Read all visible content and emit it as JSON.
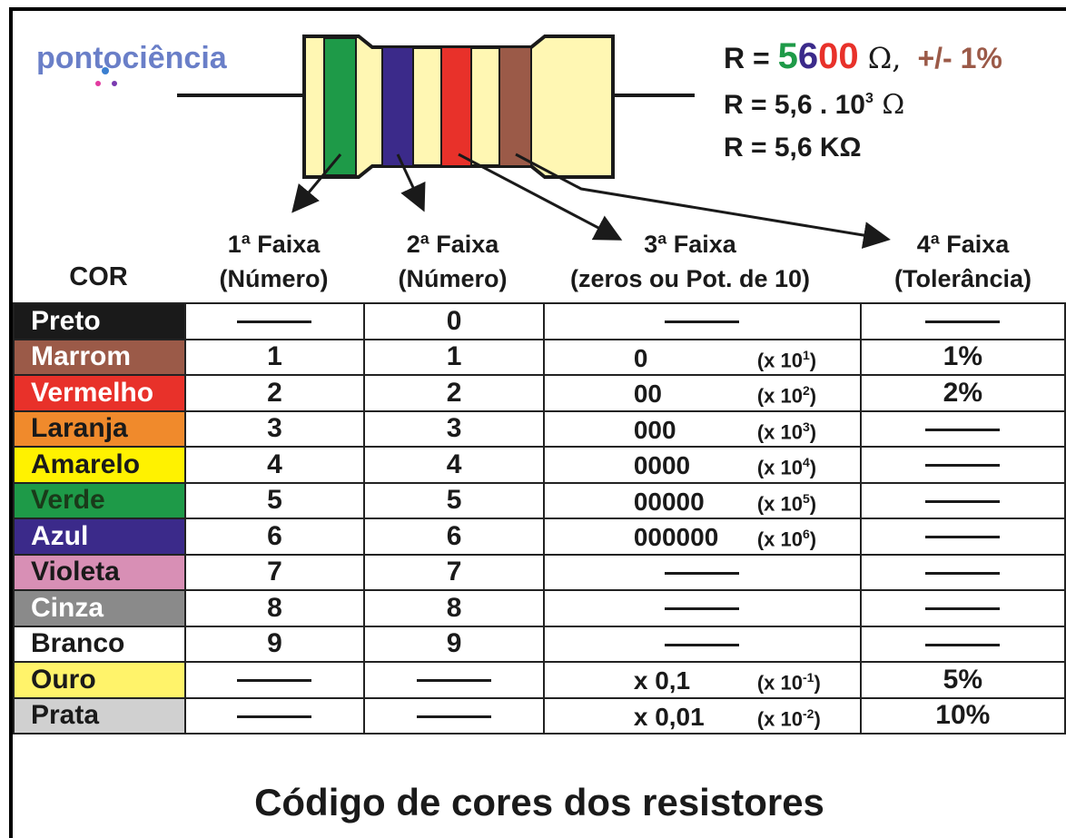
{
  "logo": "pontociência",
  "formula": {
    "line1": {
      "prefix": "R = ",
      "digit1": "5",
      "digit2": "6",
      "zeros": "00",
      "unit": " Ω,",
      "tolerance": "+/- 1%"
    },
    "line2": {
      "text": "R = 5,6 . 10",
      "exp": "3",
      "unit": " Ω"
    },
    "line3": "R = 5,6 KΩ"
  },
  "headers": {
    "color": "COR",
    "band1": [
      "1ª Faixa",
      "(Número)"
    ],
    "band2": [
      "2ª Faixa",
      "(Número)"
    ],
    "band3": [
      "3ª Faixa",
      "(zeros ou Pot. de 10)"
    ],
    "band4": [
      "4ª Faixa",
      "(Tolerância)"
    ]
  },
  "table": {
    "mult_prefix": "(x 10",
    "mult_suffix": ")",
    "rows": [
      {
        "name": "Preto",
        "color": "#1a1a1a",
        "text_color": "#ffffff",
        "band1": null,
        "band2": "0",
        "zeros": null,
        "exp": null,
        "tolerance": null
      },
      {
        "name": "Marrom",
        "color": "#9b5a48",
        "text_color": "#ffffff",
        "band1": "1",
        "band2": "1",
        "zeros": "0",
        "exp": "1",
        "tolerance": "1%"
      },
      {
        "name": "Vermelho",
        "color": "#e8312a",
        "text_color": "#ffffff",
        "band1": "2",
        "band2": "2",
        "zeros": "00",
        "exp": "2",
        "tolerance": "2%"
      },
      {
        "name": "Laranja",
        "color": "#f08a2c",
        "text_color": "#1a1a1a",
        "band1": "3",
        "band2": "3",
        "zeros": "000",
        "exp": "3",
        "tolerance": null
      },
      {
        "name": "Amarelo",
        "color": "#fff200",
        "text_color": "#1a1a1a",
        "band1": "4",
        "band2": "4",
        "zeros": "0000",
        "exp": "4",
        "tolerance": null
      },
      {
        "name": "Verde",
        "color": "#1e9a48",
        "text_color": "#1a3a1a",
        "band1": "5",
        "band2": "5",
        "zeros": "00000",
        "exp": "5",
        "tolerance": null
      },
      {
        "name": "Azul",
        "color": "#3b2a8a",
        "text_color": "#ffffff",
        "band1": "6",
        "band2": "6",
        "zeros": "000000",
        "exp": "6",
        "tolerance": null
      },
      {
        "name": "Violeta",
        "color": "#d88fb5",
        "text_color": "#1a1a1a",
        "band1": "7",
        "band2": "7",
        "zeros": null,
        "exp": null,
        "tolerance": null
      },
      {
        "name": "Cinza",
        "color": "#8a8a8a",
        "text_color": "#ffffff",
        "band1": "8",
        "band2": "8",
        "zeros": null,
        "exp": null,
        "tolerance": null
      },
      {
        "name": "Branco",
        "color": "#ffffff",
        "text_color": "#1a1a1a",
        "band1": "9",
        "band2": "9",
        "zeros": null,
        "exp": null,
        "tolerance": null
      },
      {
        "name": "Ouro",
        "color": "#fff36a",
        "text_color": "#1a1a1a",
        "band1": null,
        "band2": null,
        "zeros": "x 0,1",
        "exp": "-1",
        "tolerance": "5%"
      },
      {
        "name": "Prata",
        "color": "#d0d0d0",
        "text_color": "#1a1a1a",
        "band1": null,
        "band2": null,
        "zeros": "x 0,01",
        "exp": "-2",
        "tolerance": "10%"
      }
    ]
  },
  "footer": "Código de cores dos resistores"
}
